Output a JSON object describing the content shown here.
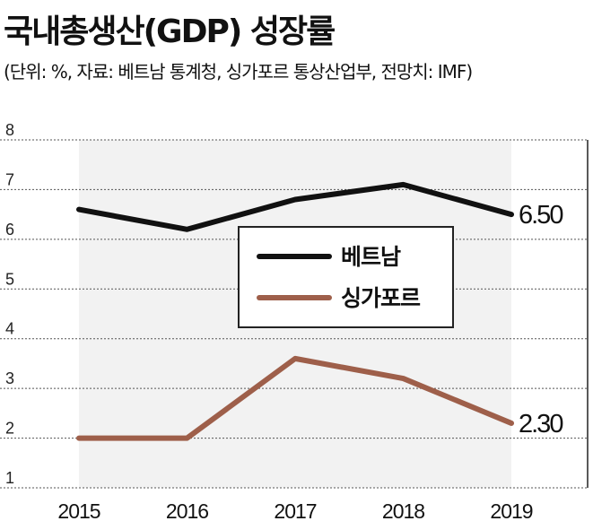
{
  "title": "국내총생산(GDP) 성장률",
  "subtitle": "(단위: %, 자료: 베트남 통계청, 싱가포르 통상산업부, 전망치: IMF)",
  "colors": {
    "vietnam": "#111111",
    "singapore": "#9e5f4a",
    "band": "#f2f2f2",
    "grid": "#555555"
  },
  "chart_data": {
    "type": "line",
    "title": "국내총생산(GDP) 성장률",
    "xlabel": "",
    "ylabel": "",
    "categories": [
      "2015",
      "2016",
      "2017",
      "2018",
      "2019"
    ],
    "y_ticks": [
      "1",
      "2",
      "3",
      "4",
      "5",
      "6",
      "7",
      "8"
    ],
    "ylim": [
      1,
      8
    ],
    "grid": true,
    "legend_position": "center",
    "series": [
      {
        "name": "베트남",
        "values": [
          6.6,
          6.2,
          6.8,
          7.1,
          6.5
        ],
        "end_label": "6.50"
      },
      {
        "name": "싱가포르",
        "values": [
          2.0,
          2.0,
          3.6,
          3.2,
          2.3
        ],
        "end_label": "2.30"
      }
    ]
  }
}
